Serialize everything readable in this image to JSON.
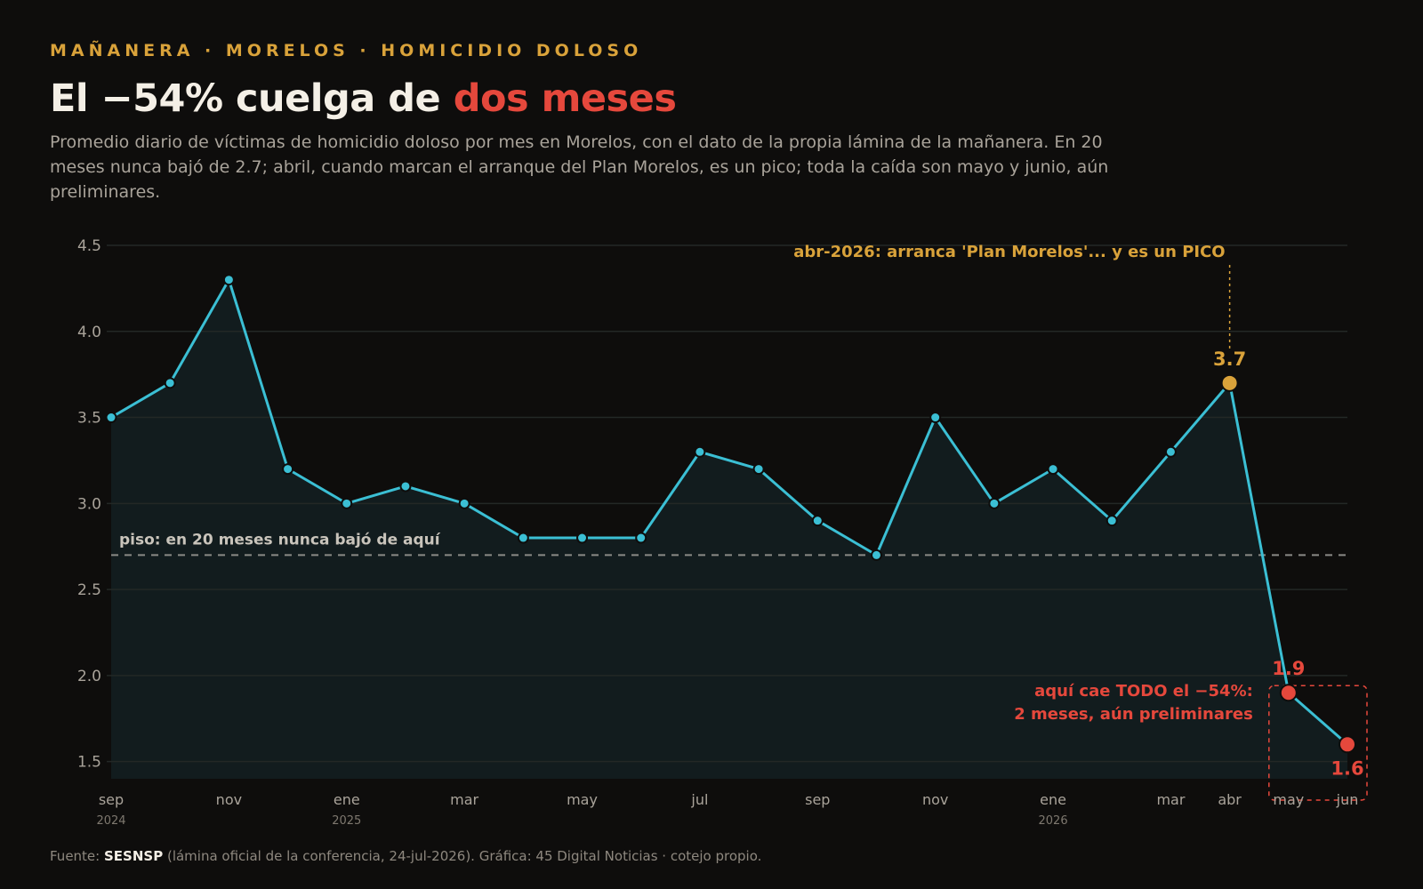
{
  "header": {
    "kicker": "MAÑANERA · MORELOS · HOMICIDIO DOLOSO",
    "title_main": "El −54% cuelga de ",
    "title_highlight": "dos meses",
    "subtitle": "Promedio diario de víctimas de homicidio doloso por mes en Morelos, con el dato de la propia lámina de la mañanera. En 20 meses nunca bajó de 2.7; abril, cuando marcan el arranque del Plan Morelos, es un pico; toda la caída son mayo y junio, aún preliminares."
  },
  "footer": {
    "prefix": "Fuente: ",
    "source_bold": "SESNSP",
    "rest": " (lámina oficial de la conferencia, 24-jul-2026). Gráfica: 45 Digital Noticias · cotejo propio."
  },
  "colors": {
    "line": "#3bbfd4",
    "area": "#121c1e",
    "accent_gold": "#d9a23a",
    "accent_red": "#e5483c",
    "floor_line": "#8a8a86",
    "grid": "#232826"
  },
  "chart_data": {
    "type": "line",
    "x": [
      "sep 2024",
      "oct 2024",
      "nov 2024",
      "dic 2024",
      "ene 2025",
      "feb 2025",
      "mar 2025",
      "abr 2025",
      "may 2025",
      "jun 2025",
      "jul 2025",
      "ago 2025",
      "sep 2025",
      "oct 2025",
      "nov 2025",
      "dic 2025",
      "ene 2026",
      "feb 2026",
      "mar 2026",
      "abr 2026",
      "may 2026",
      "jun 2026"
    ],
    "values": [
      3.5,
      3.7,
      4.3,
      3.2,
      3.0,
      3.1,
      3.0,
      2.8,
      2.8,
      2.8,
      3.3,
      3.2,
      2.9,
      2.7,
      3.5,
      3.0,
      3.2,
      2.9,
      3.3,
      3.7,
      1.9,
      1.6
    ],
    "ylim": [
      1.4,
      4.5
    ],
    "yticks": [
      1.5,
      2.0,
      2.5,
      3.0,
      3.5,
      4.0,
      4.5
    ],
    "ytick_labels": [
      "1.5",
      "2.0",
      "2.5",
      "3.0",
      "3.5",
      "4.0",
      "4.5"
    ],
    "xticks": [
      {
        "index": 0,
        "month": "sep",
        "year": "2024"
      },
      {
        "index": 2,
        "month": "nov",
        "year": ""
      },
      {
        "index": 4,
        "month": "ene",
        "year": "2025"
      },
      {
        "index": 6,
        "month": "mar",
        "year": ""
      },
      {
        "index": 8,
        "month": "may",
        "year": ""
      },
      {
        "index": 10,
        "month": "jul",
        "year": ""
      },
      {
        "index": 12,
        "month": "sep",
        "year": ""
      },
      {
        "index": 14,
        "month": "nov",
        "year": ""
      },
      {
        "index": 16,
        "month": "ene",
        "year": "2026"
      },
      {
        "index": 18,
        "month": "mar",
        "year": ""
      },
      {
        "index": 19,
        "month": "abr",
        "year": ""
      },
      {
        "index": 20,
        "month": "may",
        "year": ""
      },
      {
        "index": 21,
        "month": "jun",
        "year": ""
      }
    ],
    "grid": true,
    "floor": {
      "value": 2.7,
      "label": "piso: en 20 meses nunca bajó de aquí"
    },
    "peak": {
      "index": 19,
      "value_label": "3.7",
      "annotation": "abr-2026: arranca 'Plan Morelos'... y es un PICO"
    },
    "drop": {
      "indices": [
        20,
        21
      ],
      "value_labels": [
        "1.9",
        "1.6"
      ],
      "annotation_lines": [
        "aquí cae TODO el −54%:",
        "2 meses, aún preliminares"
      ]
    }
  }
}
